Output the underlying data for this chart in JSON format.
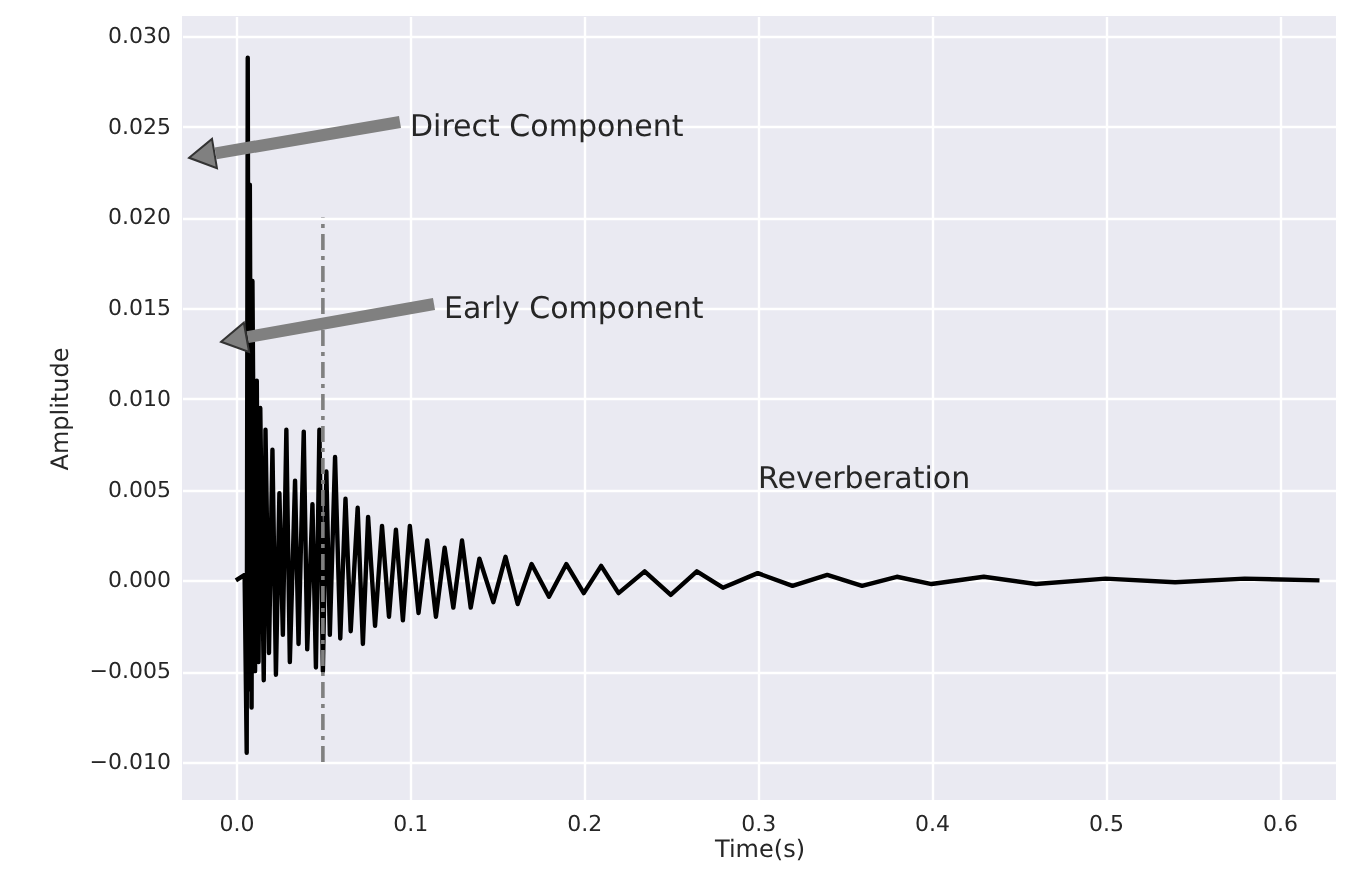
{
  "chart_data": {
    "type": "line",
    "xlabel": "Time(s)",
    "ylabel": "Amplitude",
    "grid": true,
    "xlim": [
      -0.031,
      0.6325
    ],
    "ylim": [
      -0.0121,
      0.0311
    ],
    "xticks": [
      {
        "value": 0,
        "label": "0.0"
      },
      {
        "value": 0.1,
        "label": "0.1"
      },
      {
        "value": 0.2,
        "label": "0.2"
      },
      {
        "value": 0.3,
        "label": "0.3"
      },
      {
        "value": 0.4,
        "label": "0.4"
      },
      {
        "value": 0.5,
        "label": "0.5"
      },
      {
        "value": 0.6,
        "label": "0.6"
      }
    ],
    "yticks": [
      {
        "value": -0.01,
        "label": "−0.010"
      },
      {
        "value": -0.005,
        "label": "−0.005"
      },
      {
        "value": 0,
        "label": "0.000"
      },
      {
        "value": 0.005,
        "label": "0.005"
      },
      {
        "value": 0.01,
        "label": "0.010"
      },
      {
        "value": 0.015,
        "label": "0.015"
      },
      {
        "value": 0.02,
        "label": "0.020"
      },
      {
        "value": 0.025,
        "label": "0.025"
      },
      {
        "value": 0.03,
        "label": "0.030"
      }
    ],
    "series": [
      {
        "color": "#000000",
        "line_style": "solid",
        "x": [
          0,
          0.005,
          0.0062,
          0.0068,
          0.0075,
          0.008,
          0.009,
          0.0095,
          0.011,
          0.012,
          0.013,
          0.014,
          0.016,
          0.017,
          0.019,
          0.021,
          0.023,
          0.025,
          0.027,
          0.029,
          0.031,
          0.034,
          0.036,
          0.039,
          0.041,
          0.044,
          0.046,
          0.048,
          0.05,
          0.052,
          0.054,
          0.057,
          0.06,
          0.063,
          0.066,
          0.07,
          0.073,
          0.076,
          0.08,
          0.084,
          0.088,
          0.092,
          0.096,
          0.1,
          0.105,
          0.11,
          0.115,
          0.12,
          0.125,
          0.13,
          0.135,
          0.14,
          0.148,
          0.155,
          0.162,
          0.17,
          0.18,
          0.19,
          0.2,
          0.21,
          0.22,
          0.235,
          0.25,
          0.265,
          0.28,
          0.3,
          0.32,
          0.34,
          0.36,
          0.38,
          0.4,
          0.43,
          0.46,
          0.5,
          0.54,
          0.58,
          0.623
        ],
        "values": [
          0,
          0.0003,
          -0.0095,
          0.0288,
          -0.006,
          0.0218,
          -0.007,
          0.0165,
          -0.005,
          0.011,
          -0.0045,
          0.0095,
          -0.0055,
          0.0083,
          -0.004,
          0.0072,
          -0.0052,
          0.0048,
          -0.003,
          0.0083,
          -0.0045,
          0.0055,
          -0.0035,
          0.0082,
          -0.0038,
          0.0042,
          -0.0048,
          0.0083,
          -0.005,
          0.006,
          -0.003,
          0.0068,
          -0.0032,
          0.0045,
          -0.0028,
          0.004,
          -0.0035,
          0.0035,
          -0.0025,
          0.003,
          -0.002,
          0.0028,
          -0.0022,
          0.003,
          -0.0018,
          0.0022,
          -0.002,
          0.0018,
          -0.0015,
          0.0022,
          -0.0015,
          0.0012,
          -0.0012,
          0.0013,
          -0.0013,
          0.0009,
          -0.0009,
          0.0009,
          -0.0007,
          0.0008,
          -0.0007,
          0.0005,
          -0.0008,
          0.0005,
          -0.0004,
          0.0004,
          -0.0003,
          0.0003,
          -0.0003,
          0.0002,
          -0.0002,
          0.0002,
          -0.0002,
          0.0001,
          -0.0001,
          0.0001,
          0
        ]
      },
      {
        "color": "#808080",
        "line_style": "dashed",
        "x": [
          0.05,
          0.05
        ],
        "values": [
          -0.01,
          0.02
        ]
      }
    ],
    "annotations": [
      "Direct Component",
      "Early Component",
      "Reverberation"
    ]
  }
}
